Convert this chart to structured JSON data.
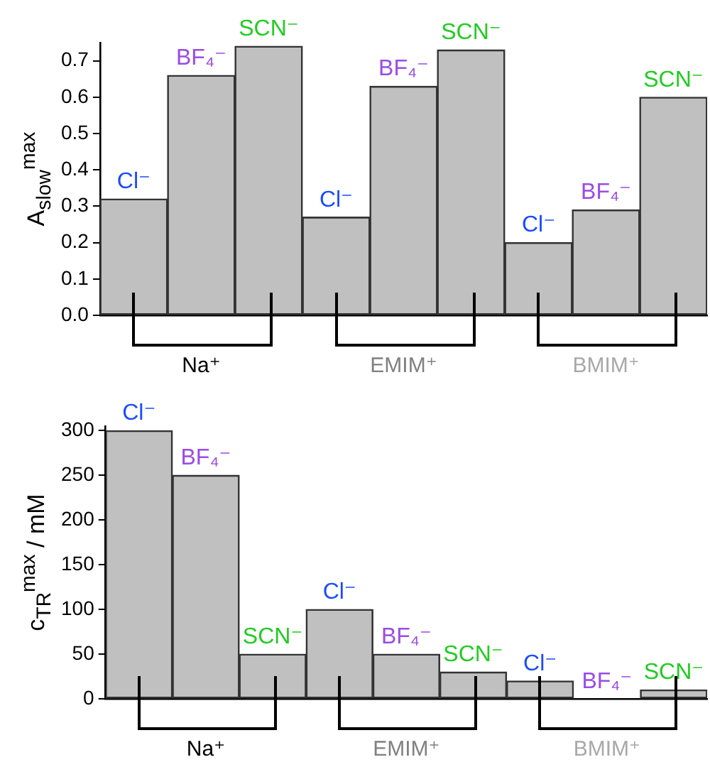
{
  "chart_data": [
    {
      "type": "bar",
      "ylabel": "A$_{slow}$$^{max}$",
      "categories": [
        "Cl⁻",
        "BF₄⁻",
        "SCN⁻",
        "Cl⁻",
        "BF₄⁻",
        "SCN⁻",
        "Cl⁻",
        "BF₄⁻",
        "SCN⁻"
      ],
      "values": [
        0.32,
        0.66,
        0.74,
        0.27,
        0.63,
        0.73,
        0.2,
        0.29,
        0.6
      ],
      "color": "#c0c0c0",
      "ylim": [
        0,
        0.75
      ],
      "yticks": [
        {
          "value": 0,
          "label": "0.0"
        },
        0.1,
        0.2,
        0.3,
        0.4,
        0.5,
        0.6,
        0.7
      ],
      "grid": false,
      "annotations": [
        "Na⁺",
        "EMIM⁺",
        "BMIM⁺"
      ]
    },
    {
      "type": "bar",
      "ylabel": "c$_{TR}$$^{max}$ / mM",
      "categories": [
        "Cl⁻",
        "BF₄⁻",
        "SCN⁻",
        "Cl⁻",
        "BF₄⁻",
        "SCN⁻",
        "Cl⁻",
        "BF₄⁻",
        "SCN⁻"
      ],
      "values": [
        300,
        250,
        50,
        100,
        50,
        30,
        20,
        null,
        10
      ],
      "color": "#c0c0c0",
      "ylim": [
        0,
        305
      ],
      "yticks": [
        0,
        50,
        100,
        150,
        200,
        250,
        300
      ],
      "grid": false,
      "annotations": [
        "Na⁺",
        "EMIM⁺",
        "BMIM⁺"
      ]
    }
  ]
}
